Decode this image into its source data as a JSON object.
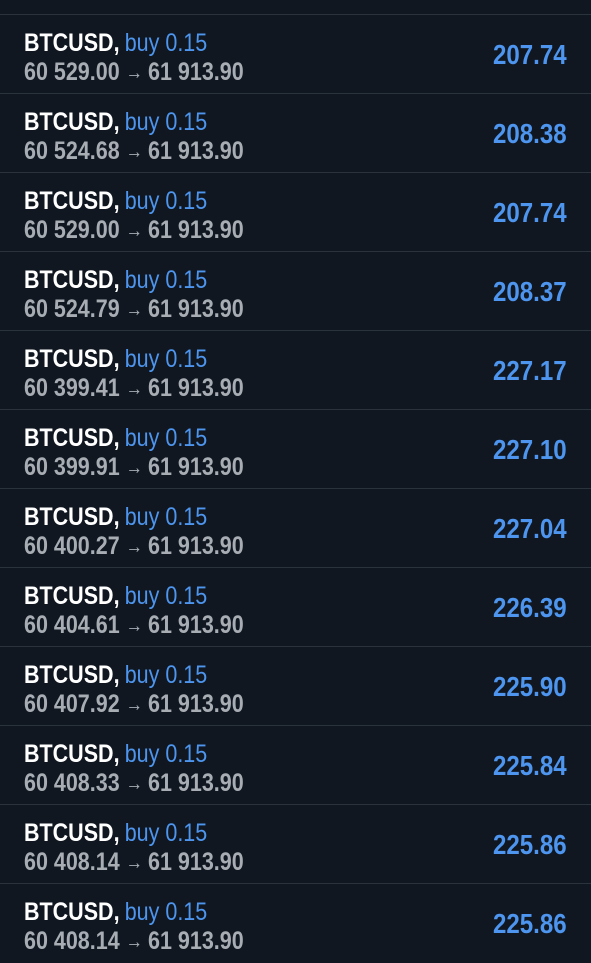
{
  "positions": [
    {
      "symbol": "BTCUSD",
      "side": "buy 0.15",
      "open_price": "60 529.00",
      "current_price": "61 913.90",
      "profit": "207.74"
    },
    {
      "symbol": "BTCUSD",
      "side": "buy 0.15",
      "open_price": "60 524.68",
      "current_price": "61 913.90",
      "profit": "208.38"
    },
    {
      "symbol": "BTCUSD",
      "side": "buy 0.15",
      "open_price": "60 529.00",
      "current_price": "61 913.90",
      "profit": "207.74"
    },
    {
      "symbol": "BTCUSD",
      "side": "buy 0.15",
      "open_price": "60 524.79",
      "current_price": "61 913.90",
      "profit": "208.37"
    },
    {
      "symbol": "BTCUSD",
      "side": "buy 0.15",
      "open_price": "60 399.41",
      "current_price": "61 913.90",
      "profit": "227.17"
    },
    {
      "symbol": "BTCUSD",
      "side": "buy 0.15",
      "open_price": "60 399.91",
      "current_price": "61 913.90",
      "profit": "227.10"
    },
    {
      "symbol": "BTCUSD",
      "side": "buy 0.15",
      "open_price": "60 400.27",
      "current_price": "61 913.90",
      "profit": "227.04"
    },
    {
      "symbol": "BTCUSD",
      "side": "buy 0.15",
      "open_price": "60 404.61",
      "current_price": "61 913.90",
      "profit": "226.39"
    },
    {
      "symbol": "BTCUSD",
      "side": "buy 0.15",
      "open_price": "60 407.92",
      "current_price": "61 913.90",
      "profit": "225.90"
    },
    {
      "symbol": "BTCUSD",
      "side": "buy 0.15",
      "open_price": "60 408.33",
      "current_price": "61 913.90",
      "profit": "225.84"
    },
    {
      "symbol": "BTCUSD",
      "side": "buy 0.15",
      "open_price": "60 408.14",
      "current_price": "61 913.90",
      "profit": "225.86"
    },
    {
      "symbol": "BTCUSD",
      "side": "buy 0.15",
      "open_price": "60 408.14",
      "current_price": "61 913.90",
      "profit": "225.86"
    }
  ],
  "separator": ",",
  "arrow": "→",
  "colors": {
    "background": "#101720",
    "divider": "#2a323c",
    "symbol": "#ffffff",
    "accent": "#4d95ee",
    "prices": "#a8adb4"
  }
}
